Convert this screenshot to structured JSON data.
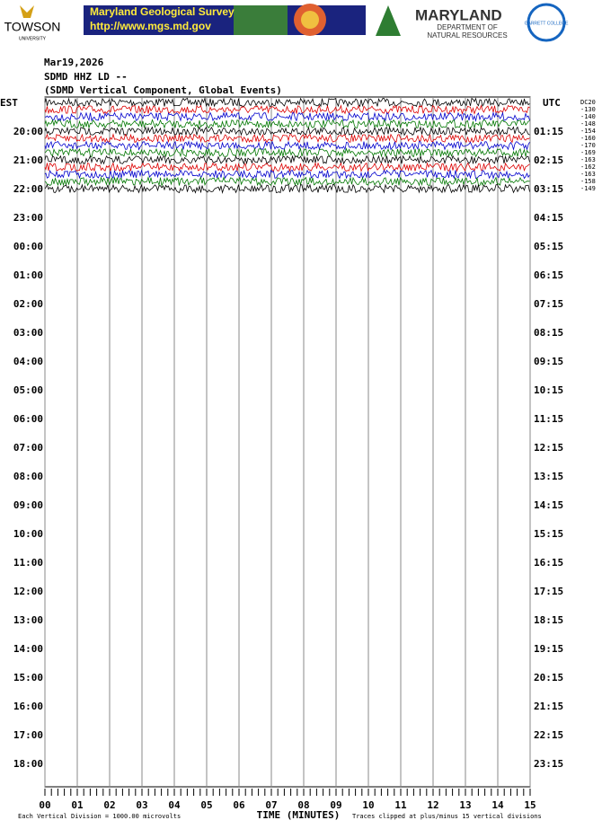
{
  "header": {
    "towson": "TOWSON",
    "towson_sub": "UNIVERSITY",
    "banner_title": "Maryland Geological Survey",
    "banner_url": "http://www.mgs.md.gov",
    "dnr_title": "MARYLAND",
    "dnr_sub1": "DEPARTMENT OF",
    "dnr_sub2": "NATURAL RESOURCES",
    "college": "GARRETT COLLEGE"
  },
  "plot": {
    "date": "Mar19,2026",
    "station": "SDMD HHZ LD --",
    "description": "(SDMD Vertical Component, Global Events)",
    "left_unit": "EST",
    "right_unit": "UTC",
    "left_labels": [
      "20:00",
      "21:00",
      "22:00",
      "23:00",
      "00:00",
      "01:00",
      "02:00",
      "03:00",
      "04:00",
      "05:00",
      "06:00",
      "07:00",
      "08:00",
      "09:00",
      "10:00",
      "11:00",
      "12:00",
      "13:00",
      "14:00",
      "15:00",
      "16:00",
      "17:00",
      "18:00"
    ],
    "right_labels": [
      "01:15",
      "02:15",
      "03:15",
      "04:15",
      "05:15",
      "06:15",
      "07:15",
      "08:15",
      "09:15",
      "10:15",
      "11:15",
      "12:15",
      "13:15",
      "14:15",
      "15:15",
      "16:15",
      "17:15",
      "18:15",
      "19:15",
      "20:15",
      "21:15",
      "22:15",
      "23:15"
    ],
    "trace_offsets": [
      "DC20",
      "-130",
      "-140",
      "-148",
      "-154",
      "-160",
      "-170",
      "-169",
      "-163",
      "-162",
      "-163",
      "-158",
      "-149"
    ],
    "minute_labels": [
      "00",
      "01",
      "02",
      "03",
      "04",
      "05",
      "06",
      "07",
      "08",
      "09",
      "10",
      "11",
      "12",
      "13",
      "14",
      "15"
    ],
    "x_axis_title": "TIME (MINUTES)",
    "footer_left": "Each Vertical Division = 1000.00 microvolts",
    "footer_right": "Traces clipped at plus/minus 15 vertical divisions"
  }
}
